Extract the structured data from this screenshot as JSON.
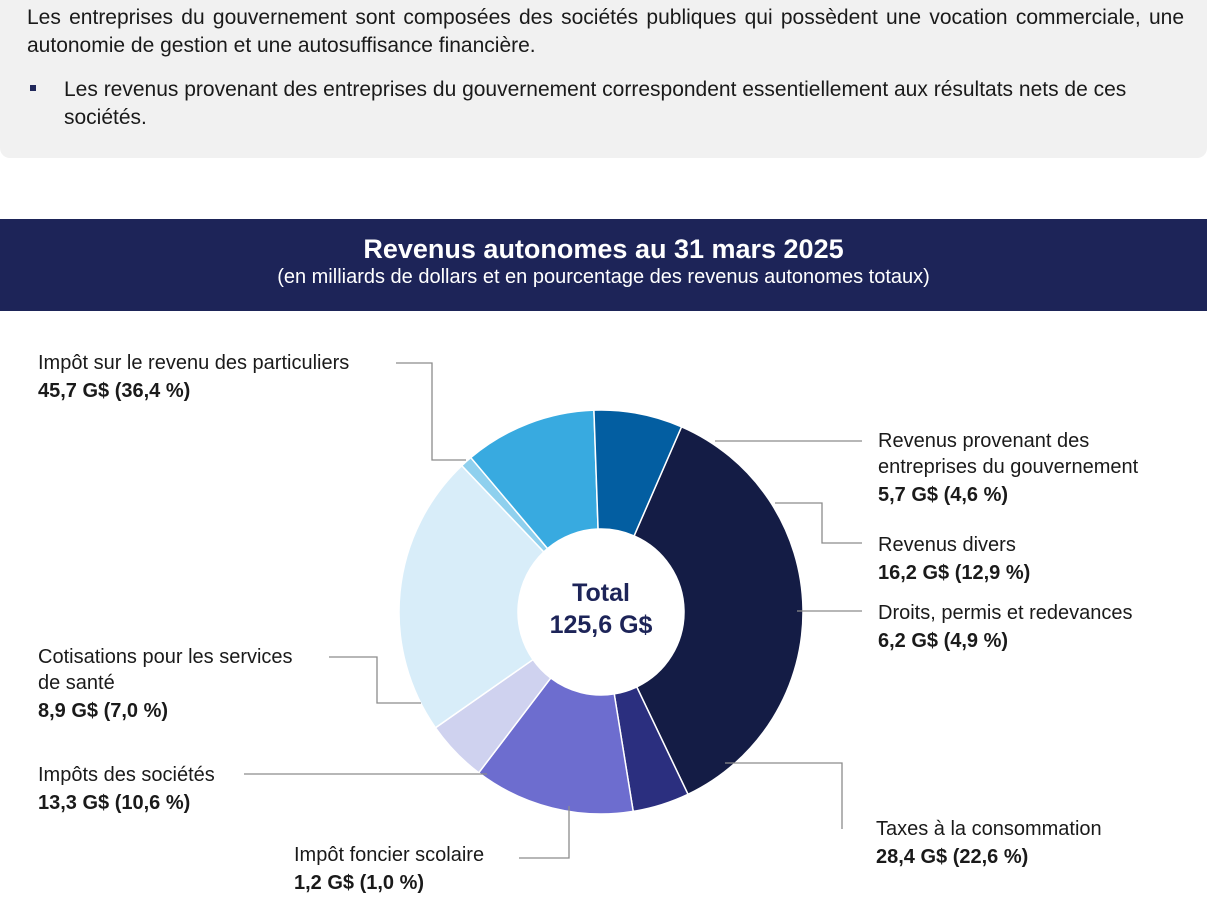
{
  "intro": {
    "paragraph": "Les entreprises du gouvernement sont composées des sociétés publiques qui possèdent une vocation commerciale, une autonomie de gestion et une autosuffisance financière.",
    "bullet": "Les revenus provenant des entreprises du gouvernement correspondent essentiellement aux résultats nets de ces sociétés."
  },
  "chart_data": {
    "type": "pie",
    "title": "Revenus autonomes au 31 mars 2025",
    "subtitle": "(en milliards de dollars et en pourcentage des revenus autonomes totaux)",
    "center_label": [
      "Total",
      "125,6 G$"
    ],
    "total": 125.6,
    "series": [
      {
        "name": "Impôt sur le revenu des particuliers",
        "label_lines": [
          "Impôt sur le revenu des particuliers"
        ],
        "value_label": "45,7 G$ (36,4 %)",
        "value": 45.7,
        "percent": 36.4,
        "color": "#141c45"
      },
      {
        "name": "Revenus provenant des entreprises du gouvernement",
        "label_lines": [
          "Revenus provenant des",
          "entreprises du gouvernement"
        ],
        "value_label": "5,7 G$ (4,6 %)",
        "value": 5.7,
        "percent": 4.6,
        "color": "#2b2f7f"
      },
      {
        "name": "Revenus divers",
        "label_lines": [
          "Revenus divers"
        ],
        "value_label": "16,2 G$ (12,9 %)",
        "value": 16.2,
        "percent": 12.9,
        "color": "#6d6dcf"
      },
      {
        "name": "Droits, permis et redevances",
        "label_lines": [
          "Droits, permis et redevances"
        ],
        "value_label": "6,2 G$ (4,9 %)",
        "value": 6.2,
        "percent": 4.9,
        "color": "#cfd2ef"
      },
      {
        "name": "Taxes à la consommation",
        "label_lines": [
          "Taxes à la consommation"
        ],
        "value_label": "28,4 G$ (22,6 %)",
        "value": 28.4,
        "percent": 22.6,
        "color": "#d8edf9"
      },
      {
        "name": "Impôt foncier scolaire",
        "label_lines": [
          "Impôt foncier scolaire"
        ],
        "value_label": "1,2 G$ (1,0 %)",
        "value": 1.2,
        "percent": 1.0,
        "color": "#8fd0ee"
      },
      {
        "name": "Impôts des sociétés",
        "label_lines": [
          "Impôts des sociétés"
        ],
        "value_label": "13,3 G$ (10,6 %)",
        "value": 13.3,
        "percent": 10.6,
        "color": "#38aae0"
      },
      {
        "name": "Cotisations pour les services de santé",
        "label_lines": [
          "Cotisations pour les services",
          "de santé"
        ],
        "value_label": "8,9 G$ (7,0 %)",
        "value": 8.9,
        "percent": 7.0,
        "color": "#035ea1"
      }
    ]
  }
}
